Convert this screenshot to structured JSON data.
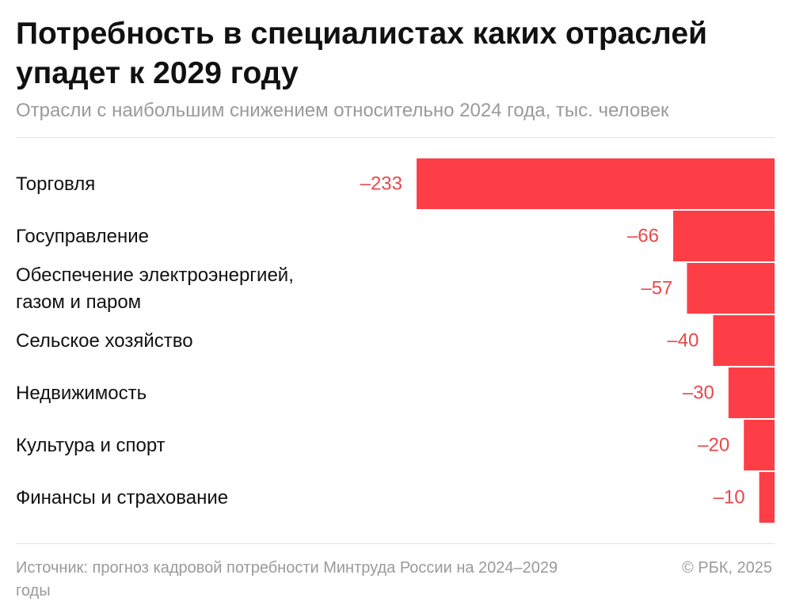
{
  "title": "Потребность в специалистах каких отраслей упадет к 2029 году",
  "subtitle": "Отрасли с наибольшим снижением относительно 2024 года, тыс. человек",
  "footer": {
    "source": "Источник: прогноз кадровой потребности Минтруда России на 2024–2029 годы",
    "copyright": "© РБК, 2025"
  },
  "colors": {
    "bar": "#fe3e46",
    "value_label": "#e8484b",
    "text": "#111111",
    "muted": "#9a9a9a"
  },
  "chart_data": {
    "type": "bar",
    "orientation": "horizontal",
    "title": "Потребность в специалистах каких отраслей упадет к 2029 году",
    "subtitle": "Отрасли с наибольшим снижением относительно 2024 года, тыс. человек",
    "categories": [
      [
        "Торговля"
      ],
      [
        "Госуправление"
      ],
      [
        "Обеспечение электроэнергией,",
        "газом и паром"
      ],
      [
        "Сельское хозяйство"
      ],
      [
        "Недвижимость"
      ],
      [
        "Культура и спорт"
      ],
      [
        "Финансы и страхование"
      ]
    ],
    "values": [
      -233,
      -66,
      -57,
      -40,
      -30,
      -20,
      -10
    ],
    "value_labels": [
      "–233",
      "–66",
      "–57",
      "–40",
      "–30",
      "–20",
      "–10"
    ],
    "xlim": [
      -233,
      0
    ],
    "bars_anchor": "right",
    "grid": false,
    "legend": "none"
  }
}
